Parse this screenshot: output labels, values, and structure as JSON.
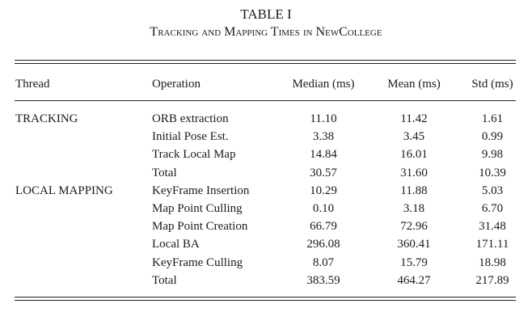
{
  "table_number": "TABLE I",
  "caption": "Tracking and Mapping Times in NewCollege",
  "columns": [
    "Thread",
    "Operation",
    "Median (ms)",
    "Mean (ms)",
    "Std (ms)"
  ],
  "rows": [
    {
      "thread": "TRACKING",
      "operation": "ORB extraction",
      "median": "11.10",
      "mean": "11.42",
      "std": "1.61"
    },
    {
      "thread": "",
      "operation": "Initial Pose Est.",
      "median": "3.38",
      "mean": "3.45",
      "std": "0.99"
    },
    {
      "thread": "",
      "operation": "Track Local Map",
      "median": "14.84",
      "mean": "16.01",
      "std": "9.98"
    },
    {
      "thread": "",
      "operation": "Total",
      "median": "30.57",
      "mean": "31.60",
      "std": "10.39"
    },
    {
      "thread": "LOCAL MAPPING",
      "operation": "KeyFrame Insertion",
      "median": "10.29",
      "mean": "11.88",
      "std": "5.03"
    },
    {
      "thread": "",
      "operation": "Map Point Culling",
      "median": "0.10",
      "mean": "3.18",
      "std": "6.70"
    },
    {
      "thread": "",
      "operation": "Map Point Creation",
      "median": "66.79",
      "mean": "72.96",
      "std": "31.48"
    },
    {
      "thread": "",
      "operation": "Local BA",
      "median": "296.08",
      "mean": "360.41",
      "std": "171.11"
    },
    {
      "thread": "",
      "operation": "KeyFrame Culling",
      "median": "8.07",
      "mean": "15.79",
      "std": "18.98"
    },
    {
      "thread": "",
      "operation": "Total",
      "median": "383.59",
      "mean": "464.27",
      "std": "217.89"
    }
  ]
}
